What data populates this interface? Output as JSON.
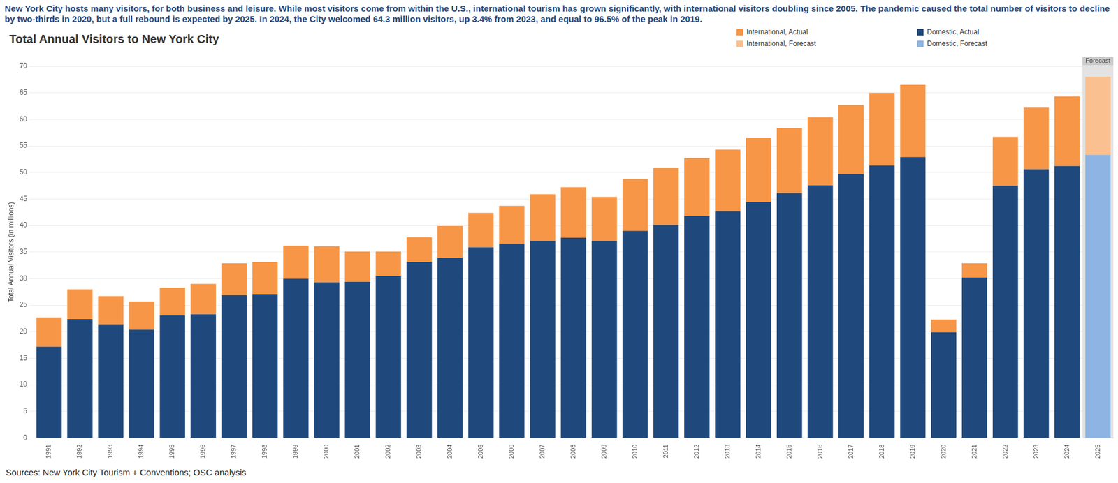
{
  "chart_data": {
    "type": "bar",
    "description": "New York City hosts many visitors, for both business and leisure. While most visitors come from within the U.S., international tourism has grown significantly, with international visitors doubling since 2005. The pandemic caused the total number of visitors to decline by two-thirds in 2020, but a full rebound is expected by 2025. In 2024, the City welcomed 64.3 million visitors, up 3.4% from 2023, and equal to 96.5% of the peak in 2019.",
    "title": "Total Annual Visitors to New York City",
    "y_label": "Total Annual Visitors (in millions)",
    "source": "Sources: New York City Tourism + Conventions; OSC analysis",
    "categories": [
      "1991",
      "1992",
      "1993",
      "1994",
      "1995",
      "1996",
      "1997",
      "1998",
      "1999",
      "2000",
      "2001",
      "2002",
      "2003",
      "2004",
      "2005",
      "2006",
      "2007",
      "2008",
      "2009",
      "2010",
      "2011",
      "2012",
      "2013",
      "2014",
      "2015",
      "2016",
      "2017",
      "2018",
      "2019",
      "2020",
      "2021",
      "2022",
      "2023",
      "2024",
      "2025"
    ],
    "series": [
      {
        "name": "Domestic, Actual",
        "color": "#1F497D",
        "values": [
          17.2,
          22.4,
          21.4,
          20.4,
          23.1,
          23.3,
          26.9,
          27.1,
          30.0,
          29.3,
          29.4,
          30.5,
          33.1,
          33.9,
          35.9,
          36.6,
          37.1,
          37.7,
          37.1,
          39.0,
          40.1,
          41.8,
          42.7,
          44.4,
          46.1,
          47.6,
          49.7,
          51.3,
          52.9,
          19.9,
          30.2,
          47.5,
          50.6,
          51.2,
          null
        ]
      },
      {
        "name": "International, Actual",
        "color": "#F79646",
        "values": [
          5.5,
          5.6,
          5.3,
          5.3,
          5.2,
          5.7,
          6.0,
          6.0,
          6.2,
          6.8,
          5.7,
          4.6,
          4.7,
          6.0,
          6.5,
          7.1,
          8.8,
          9.5,
          8.3,
          9.8,
          10.8,
          10.9,
          11.6,
          12.1,
          12.3,
          12.8,
          13.0,
          13.7,
          13.6,
          2.4,
          2.7,
          9.2,
          11.6,
          13.1,
          null
        ]
      },
      {
        "name": "Domestic, Forecast",
        "color": "#8DB4E2",
        "values": [
          null,
          null,
          null,
          null,
          null,
          null,
          null,
          null,
          null,
          null,
          null,
          null,
          null,
          null,
          null,
          null,
          null,
          null,
          null,
          null,
          null,
          null,
          null,
          null,
          null,
          null,
          null,
          null,
          null,
          null,
          null,
          null,
          null,
          null,
          53.3
        ]
      },
      {
        "name": "International, Forecast",
        "color": "#FAC090",
        "values": [
          null,
          null,
          null,
          null,
          null,
          null,
          null,
          null,
          null,
          null,
          null,
          null,
          null,
          null,
          null,
          null,
          null,
          null,
          null,
          null,
          null,
          null,
          null,
          null,
          null,
          null,
          null,
          null,
          null,
          null,
          null,
          null,
          null,
          null,
          14.7
        ]
      }
    ],
    "annotations": [
      {
        "label": "Forecast",
        "x": "2025"
      }
    ],
    "ylim": [
      0,
      70
    ],
    "yticks": [
      0,
      5,
      10,
      15,
      20,
      25,
      30,
      35,
      40,
      45,
      50,
      55,
      60,
      65,
      70
    ],
    "stacked": true,
    "grid": true,
    "legend": "top-right"
  }
}
